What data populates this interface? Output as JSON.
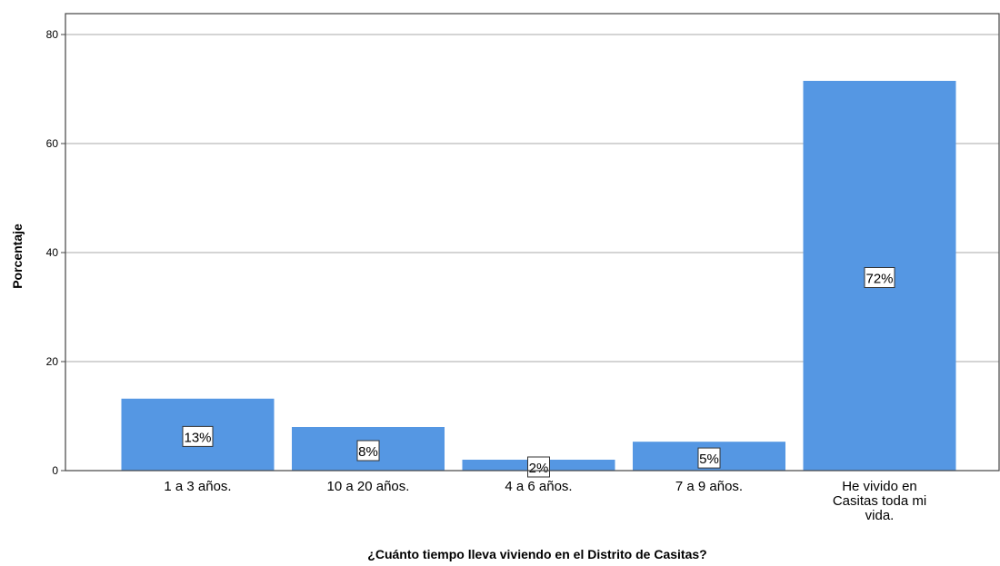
{
  "chart_data": {
    "type": "bar",
    "categories": [
      [
        "1 a 3 años."
      ],
      [
        "10 a 20 años."
      ],
      [
        "4 a 6 años."
      ],
      [
        "7 a 9 años."
      ],
      [
        "He vivido en",
        "Casitas toda mi",
        "vida."
      ]
    ],
    "values": [
      13.2,
      8.0,
      2.0,
      5.3,
      71.5
    ],
    "data_labels": [
      "13%",
      "8%",
      "2%",
      "5%",
      "72%"
    ],
    "xlabel": "¿Cuánto tiempo lleva viviendo en el Distrito de Casitas?",
    "ylabel": "Porcentaje",
    "ylim": [
      0,
      85
    ],
    "yticks": [
      0,
      20,
      40,
      60,
      80
    ],
    "grid": true,
    "bar_color": "#5597e3",
    "legend": "none"
  }
}
